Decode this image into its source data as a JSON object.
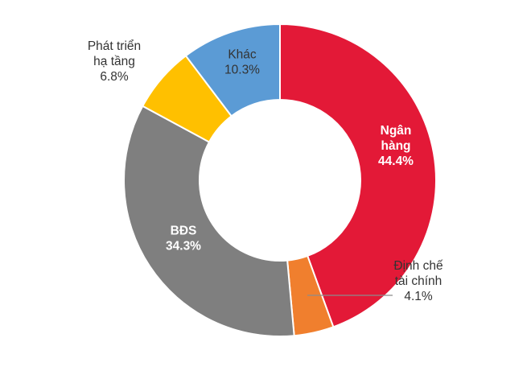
{
  "chart_data": {
    "type": "pie",
    "variant": "donut",
    "slices": [
      {
        "label": "Ngân hàng",
        "label_lines": [
          "Ngân",
          "hàng"
        ],
        "value": 44.4,
        "value_text": "44.4%",
        "color": "#E31937",
        "text_color": "#ffffff",
        "bold": true
      },
      {
        "label": "Định chế tài chính",
        "label_lines": [
          "Định chế",
          "tài chính"
        ],
        "value": 4.1,
        "value_text": "4.1%",
        "color": "#F07F2E",
        "text_color": "#333333",
        "bold": false,
        "leader_line": true
      },
      {
        "label": "BĐS",
        "label_lines": [
          "BĐS"
        ],
        "value": 34.3,
        "value_text": "34.3%",
        "color": "#7F7F7F",
        "text_color": "#ffffff",
        "bold": true
      },
      {
        "label": "Phát triển hạ tầng",
        "label_lines": [
          "Phát triển",
          "hạ tầng"
        ],
        "value": 6.8,
        "value_text": "6.8%",
        "color": "#FFC000",
        "text_color": "#333333",
        "bold": false
      },
      {
        "label": "Khác",
        "label_lines": [
          "Khác"
        ],
        "value": 10.3,
        "value_text": "10.3%",
        "color": "#5B9BD5",
        "text_color": "#333333",
        "bold": false
      }
    ],
    "start": "12 o'clock",
    "direction": "clockwise",
    "legend": "none"
  }
}
